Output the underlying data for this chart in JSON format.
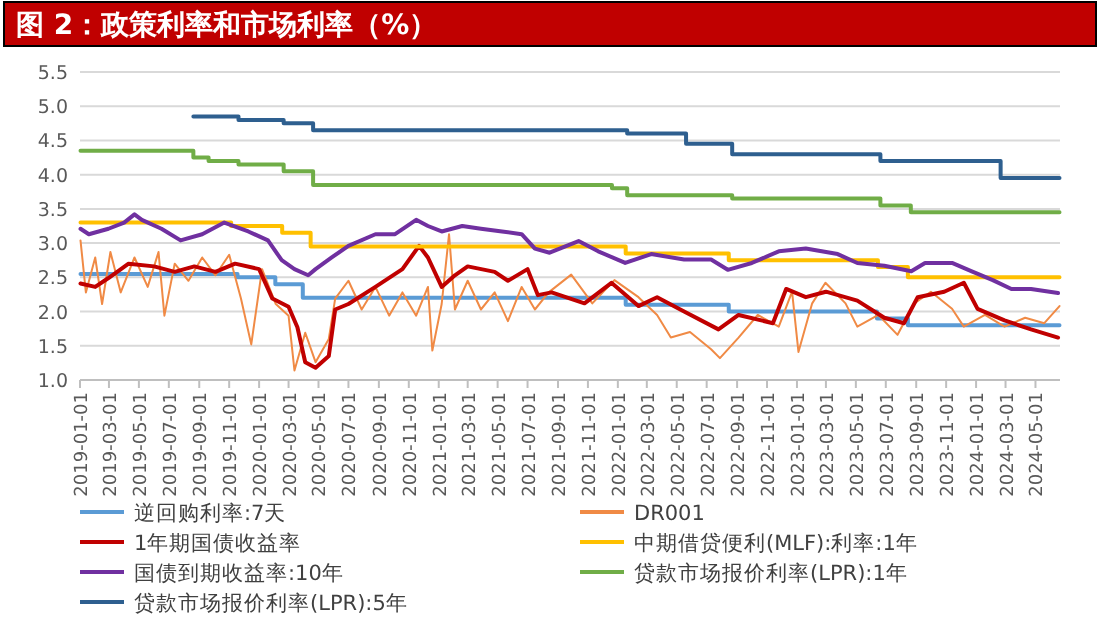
{
  "chart_data": {
    "type": "line",
    "title": "图 2：政策利率和市场利率（%）",
    "xlim": [
      "2019-01-01",
      "2024-06-20"
    ],
    "xticks": [
      "2019-01-01",
      "2019-03-01",
      "2019-05-01",
      "2019-07-01",
      "2019-09-01",
      "2019-11-01",
      "2020-01-01",
      "2020-03-01",
      "2020-05-01",
      "2020-07-01",
      "2020-09-01",
      "2020-11-01",
      "2021-01-01",
      "2021-03-01",
      "2021-05-01",
      "2021-07-01",
      "2021-09-01",
      "2021-11-01",
      "2022-01-01",
      "2022-03-01",
      "2022-05-01",
      "2022-07-01",
      "2022-09-01",
      "2022-11-01",
      "2023-01-01",
      "2023-03-01",
      "2023-05-01",
      "2023-07-01",
      "2023-09-01",
      "2023-11-01",
      "2024-01-01",
      "2024-03-01",
      "2024-05-01"
    ],
    "ylim": [
      1,
      5.5
    ],
    "yticks": [
      {
        "value": 1,
        "label": "1.0"
      },
      {
        "value": 1.5,
        "label": "1.5"
      },
      {
        "value": 2,
        "label": "2.0"
      },
      {
        "value": 2.5,
        "label": "2.5"
      },
      {
        "value": 3,
        "label": "3.0"
      },
      {
        "value": 3.5,
        "label": "3.5"
      },
      {
        "value": 4,
        "label": "4.0"
      },
      {
        "value": 4.5,
        "label": "4.5"
      },
      {
        "value": 5,
        "label": "5.0"
      },
      {
        "value": 5.5,
        "label": "5.5"
      }
    ],
    "grid": "y",
    "legend": "bottom",
    "series": [
      {
        "name": "逆回购利率:7天",
        "type": "step",
        "color": "#5b9bd5",
        "x": [
          "2019-01-02",
          "2019-11-18",
          "2020-02-03",
          "2020-03-30",
          "2022-01-17",
          "2022-08-15",
          "2023-06-13",
          "2023-08-15",
          "2024-06-19"
        ],
        "values": [
          2.55,
          2.5,
          2.4,
          2.2,
          2.1,
          2.0,
          1.9,
          1.8,
          1.8
        ]
      },
      {
        "name": "DR001",
        "color": "#f08a45",
        "x": [
          "2019-01-02",
          "2019-01-13",
          "2019-02-01",
          "2019-02-15",
          "2019-03-04",
          "2019-03-25",
          "2019-04-22",
          "2019-05-19",
          "2019-06-10",
          "2019-06-22",
          "2019-07-13",
          "2019-08-10",
          "2019-09-07",
          "2019-10-04",
          "2019-11-01",
          "2019-11-25",
          "2019-12-16",
          "2020-01-07",
          "2020-02-04",
          "2020-03-01",
          "2020-03-13",
          "2020-04-04",
          "2020-04-25",
          "2020-05-22",
          "2020-06-04",
          "2020-07-01",
          "2020-07-28",
          "2020-08-25",
          "2020-09-22",
          "2020-10-19",
          "2020-11-16",
          "2020-12-10",
          "2020-12-19",
          "2021-01-07",
          "2021-01-22",
          "2021-02-03",
          "2021-03-01",
          "2021-03-28",
          "2021-04-25",
          "2021-05-22",
          "2021-06-19",
          "2021-07-16",
          "2021-08-13",
          "2021-09-28",
          "2021-11-10",
          "2021-12-25",
          "2022-02-12",
          "2022-03-22",
          "2022-04-19",
          "2022-05-28",
          "2022-07-10",
          "2022-07-28",
          "2022-09-04",
          "2022-10-13",
          "2022-11-25",
          "2022-12-22",
          "2023-01-04",
          "2023-02-01",
          "2023-02-28",
          "2023-04-10",
          "2023-05-04",
          "2023-06-16",
          "2023-07-25",
          "2023-08-28",
          "2023-10-01",
          "2023-11-13",
          "2023-12-07",
          "2024-01-19",
          "2024-02-28",
          "2024-04-10",
          "2024-05-19",
          "2024-06-19"
        ],
        "values": [
          3.04,
          2.28,
          2.79,
          2.11,
          2.87,
          2.28,
          2.79,
          2.36,
          2.87,
          1.94,
          2.7,
          2.45,
          2.79,
          2.53,
          2.83,
          2.19,
          1.52,
          2.62,
          2.11,
          1.94,
          1.14,
          1.69,
          1.26,
          1.6,
          2.19,
          2.45,
          2.03,
          2.36,
          1.94,
          2.28,
          1.94,
          2.36,
          1.43,
          2.11,
          3.13,
          2.03,
          2.45,
          2.03,
          2.28,
          1.86,
          2.36,
          2.03,
          2.28,
          2.54,
          2.12,
          2.46,
          2.21,
          1.95,
          1.62,
          1.7,
          1.45,
          1.32,
          1.62,
          1.95,
          1.78,
          2.29,
          1.41,
          2.12,
          2.42,
          2.12,
          1.78,
          1.95,
          1.66,
          2.12,
          2.29,
          2.04,
          1.78,
          1.95,
          1.78,
          1.91,
          1.83,
          2.08
        ]
      },
      {
        "name": "1年期国债收益率",
        "color": "#c00000",
        "x": [
          "2019-01-02",
          "2019-02-01",
          "2019-02-28",
          "2019-04-10",
          "2019-06-01",
          "2019-07-13",
          "2019-08-22",
          "2019-10-04",
          "2019-11-13",
          "2020-01-01",
          "2020-01-28",
          "2020-03-01",
          "2020-03-19",
          "2020-04-04",
          "2020-04-25",
          "2020-05-22",
          "2020-06-04",
          "2020-07-01",
          "2020-08-25",
          "2020-10-19",
          "2020-11-22",
          "2020-12-10",
          "2021-01-07",
          "2021-02-03",
          "2021-03-01",
          "2021-04-25",
          "2021-05-22",
          "2021-07-01",
          "2021-07-22",
          "2021-08-19",
          "2021-10-25",
          "2021-12-19",
          "2022-02-12",
          "2022-03-22",
          "2022-05-16",
          "2022-07-25",
          "2022-09-04",
          "2022-11-13",
          "2022-12-10",
          "2023-01-19",
          "2023-03-01",
          "2023-05-04",
          "2023-06-28",
          "2023-08-07",
          "2023-09-04",
          "2023-10-28",
          "2023-12-07",
          "2024-01-04",
          "2024-02-28",
          "2024-04-22",
          "2024-06-16"
        ],
        "values": [
          2.41,
          2.36,
          2.49,
          2.7,
          2.66,
          2.58,
          2.66,
          2.58,
          2.7,
          2.62,
          2.19,
          2.07,
          1.77,
          1.26,
          1.18,
          1.35,
          2.03,
          2.11,
          2.36,
          2.62,
          2.96,
          2.79,
          2.36,
          2.53,
          2.66,
          2.58,
          2.45,
          2.62,
          2.24,
          2.28,
          2.12,
          2.42,
          2.08,
          2.21,
          2.0,
          1.74,
          1.95,
          1.83,
          2.33,
          2.21,
          2.29,
          2.16,
          1.91,
          1.83,
          2.21,
          2.29,
          2.42,
          2.04,
          1.87,
          1.74,
          1.62
        ]
      },
      {
        "name": "中期借贷便利(MLF):利率:1年",
        "type": "step",
        "color": "#ffc000",
        "x": [
          "2019-01-02",
          "2019-11-05",
          "2020-02-17",
          "2020-04-15",
          "2022-01-17",
          "2022-08-15",
          "2023-06-15",
          "2023-08-15",
          "2024-06-19"
        ],
        "values": [
          3.3,
          3.25,
          3.15,
          2.95,
          2.85,
          2.75,
          2.65,
          2.5,
          2.5
        ]
      },
      {
        "name": "国债到期收益率:10年",
        "color": "#7030a0",
        "x": [
          "2019-01-02",
          "2019-01-19",
          "2019-02-28",
          "2019-04-01",
          "2019-04-22",
          "2019-05-07",
          "2019-06-16",
          "2019-07-25",
          "2019-09-07",
          "2019-10-22",
          "2019-12-10",
          "2020-01-19",
          "2020-02-16",
          "2020-03-13",
          "2020-04-10",
          "2020-04-25",
          "2020-05-28",
          "2020-07-01",
          "2020-08-25",
          "2020-10-04",
          "2020-11-16",
          "2020-12-10",
          "2021-01-07",
          "2021-02-18",
          "2021-03-28",
          "2021-05-10",
          "2021-06-19",
          "2021-07-16",
          "2021-08-15",
          "2021-10-13",
          "2021-11-22",
          "2022-01-16",
          "2022-03-10",
          "2022-05-16",
          "2022-07-10",
          "2022-08-13",
          "2022-10-01",
          "2022-11-25",
          "2023-01-19",
          "2023-03-25",
          "2023-05-04",
          "2023-06-28",
          "2023-08-22",
          "2023-09-19",
          "2023-11-13",
          "2023-12-22",
          "2024-02-04",
          "2024-03-13",
          "2024-04-22",
          "2024-06-16"
        ],
        "values": [
          3.21,
          3.13,
          3.21,
          3.3,
          3.42,
          3.34,
          3.21,
          3.04,
          3.13,
          3.3,
          3.17,
          3.04,
          2.75,
          2.62,
          2.53,
          2.62,
          2.79,
          2.96,
          3.13,
          3.13,
          3.34,
          3.25,
          3.17,
          3.25,
          3.21,
          3.17,
          3.13,
          2.92,
          2.86,
          3.03,
          2.88,
          2.71,
          2.84,
          2.76,
          2.76,
          2.61,
          2.71,
          2.88,
          2.92,
          2.84,
          2.71,
          2.67,
          2.59,
          2.71,
          2.71,
          2.59,
          2.46,
          2.33,
          2.33,
          2.27
        ]
      },
      {
        "name": "贷款市场报价利率(LPR):1年",
        "type": "step",
        "color": "#70ad47",
        "x": [
          "2019-01-02",
          "2019-08-20",
          "2019-09-20",
          "2019-11-20",
          "2020-02-20",
          "2020-04-20",
          "2021-12-20",
          "2022-01-20",
          "2022-08-22",
          "2023-06-20",
          "2023-08-21",
          "2024-06-19"
        ],
        "values": [
          4.35,
          4.25,
          4.2,
          4.15,
          4.05,
          3.85,
          3.8,
          3.7,
          3.65,
          3.55,
          3.45,
          3.45
        ]
      },
      {
        "name": "贷款市场报价利率(LPR):5年",
        "type": "step",
        "color": "#2e5f8f",
        "x": [
          "2019-08-20",
          "2019-11-20",
          "2020-02-20",
          "2020-04-20",
          "2022-01-20",
          "2022-05-20",
          "2022-08-22",
          "2023-06-20",
          "2024-02-20",
          "2024-06-19"
        ],
        "values": [
          4.85,
          4.8,
          4.75,
          4.65,
          4.6,
          4.45,
          4.3,
          4.2,
          3.95,
          3.95
        ]
      }
    ]
  }
}
